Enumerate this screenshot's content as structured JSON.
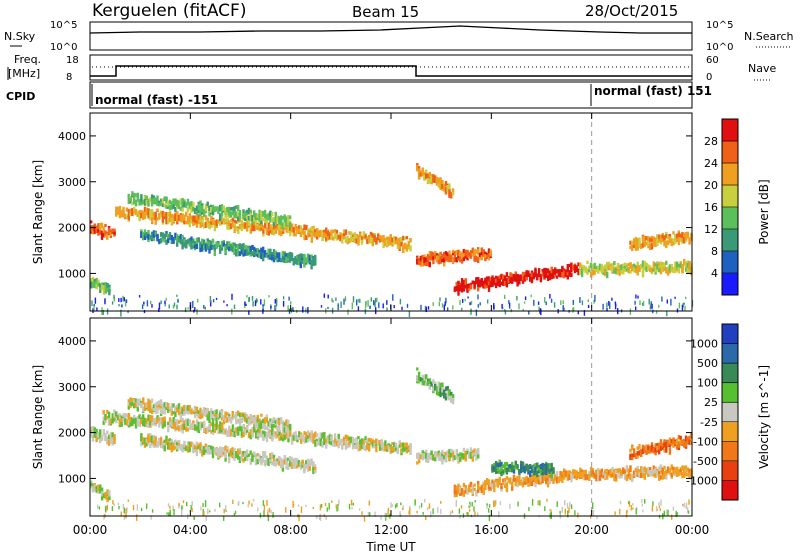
{
  "header": {
    "station": "Kerguelen (fitACF)",
    "beam": "Beam 15",
    "date": "28/Oct/2015"
  },
  "top_panels": {
    "nsky_label": "N.Sky",
    "nsky_ticks": [
      "10^5",
      "10^0"
    ],
    "nsearch_label": "N.Search",
    "nsearch_ticks": [
      "10^5",
      "10^0"
    ],
    "freq_label_1": "Freq.",
    "freq_label_2": "[MHz]",
    "freq_ticks": [
      "18",
      "8"
    ],
    "nave_label": "Nave",
    "nave_ticks": [
      "60",
      "0"
    ],
    "cpid_label": "CPID",
    "cpid_segments": [
      {
        "label": "normal (fast) -151",
        "start_hour": 0
      },
      {
        "label": "normal (fast) 151",
        "start_hour": 20
      }
    ]
  },
  "x_axis": {
    "label": "Time UT",
    "ticks": [
      "00:00",
      "04:00",
      "08:00",
      "12:00",
      "16:00",
      "20:00",
      "00:00"
    ],
    "tick_hours": [
      0,
      4,
      8,
      12,
      16,
      20,
      24
    ],
    "range": [
      0,
      24
    ]
  },
  "chart_data": [
    {
      "type": "heatmap",
      "panel": "power",
      "ylabel": "Slant Range [km]",
      "ylim": [
        180,
        4500
      ],
      "yticks": [
        "1000",
        "2000",
        "3000",
        "4000"
      ],
      "ytick_values": [
        1000,
        2000,
        3000,
        4000
      ],
      "colorbar": {
        "label": "Power [dB]",
        "ticks": [
          "4",
          "8",
          "12",
          "16",
          "20",
          "24",
          "28"
        ],
        "colors": [
          "#1a1aff",
          "#2060c0",
          "#3a9a78",
          "#5cbf5c",
          "#c8d040",
          "#f0a020",
          "#f06018",
          "#e01010"
        ]
      },
      "bands": [
        {
          "x0": 1,
          "x1": 12.8,
          "y0": 2400,
          "y1": 1700,
          "level": 5
        },
        {
          "x0": 0,
          "x1": 1,
          "y0": 2050,
          "y1": 1900,
          "level": 6
        },
        {
          "x0": 1.5,
          "x1": 8,
          "y0": 2700,
          "y1": 2200,
          "level": 3
        },
        {
          "x0": 2,
          "x1": 9,
          "y0": 1900,
          "y1": 1300,
          "level": 2
        },
        {
          "x0": 13,
          "x1": 16,
          "y0": 1350,
          "y1": 1500,
          "level": 6
        },
        {
          "x0": 14.5,
          "x1": 19.5,
          "y0": 750,
          "y1": 1150,
          "level": 7
        },
        {
          "x0": 19.5,
          "x1": 24,
          "y0": 1150,
          "y1": 1200,
          "level": 4
        },
        {
          "x0": 21.5,
          "x1": 24,
          "y0": 1700,
          "y1": 1850,
          "level": 5
        },
        {
          "x0": 13,
          "x1": 14.5,
          "y0": 3300,
          "y1": 2800,
          "level": 5
        },
        {
          "x0": 0,
          "x1": 0.8,
          "y0": 900,
          "y1": 650,
          "level": 3
        }
      ]
    },
    {
      "type": "heatmap",
      "panel": "velocity",
      "ylabel": "Slant Range [km]",
      "ylim": [
        180,
        4500
      ],
      "yticks": [
        "1000",
        "2000",
        "3000",
        "4000"
      ],
      "ytick_values": [
        1000,
        2000,
        3000,
        4000
      ],
      "colorbar": {
        "label": "Velocity [m s^-1]",
        "ticks": [
          "1000",
          "500",
          "100",
          "25",
          "-25",
          "-100",
          "-500",
          "-1000"
        ],
        "colors": [
          "#2040c0",
          "#2a6aa8",
          "#3a8a58",
          "#58c030",
          "#c8c8c0",
          "#f0a020",
          "#f07818",
          "#e84010",
          "#e01010"
        ]
      },
      "bands": [
        {
          "x0": 0.5,
          "x1": 12.8,
          "y0": 2400,
          "y1": 1700,
          "level": 4
        },
        {
          "x0": 0,
          "x1": 1,
          "y0": 2050,
          "y1": 1900,
          "level": 4
        },
        {
          "x0": 1.5,
          "x1": 8,
          "y0": 2700,
          "y1": 2200,
          "level": 4
        },
        {
          "x0": 2,
          "x1": 9,
          "y0": 1900,
          "y1": 1300,
          "level": 4
        },
        {
          "x0": 13,
          "x1": 15.5,
          "y0": 1500,
          "y1": 1600,
          "level": 4
        },
        {
          "x0": 14.5,
          "x1": 19.5,
          "y0": 800,
          "y1": 1150,
          "level": 5
        },
        {
          "x0": 19.5,
          "x1": 24,
          "y0": 1150,
          "y1": 1200,
          "level": 5
        },
        {
          "x0": 16,
          "x1": 18.5,
          "y0": 1300,
          "y1": 1250,
          "level": 2
        },
        {
          "x0": 13,
          "x1": 14.5,
          "y0": 3300,
          "y1": 2800,
          "level": 3
        },
        {
          "x0": 21.5,
          "x1": 24,
          "y0": 1600,
          "y1": 1900,
          "level": 6
        },
        {
          "x0": 0,
          "x1": 0.8,
          "y0": 900,
          "y1": 650,
          "level": 4
        }
      ]
    }
  ]
}
